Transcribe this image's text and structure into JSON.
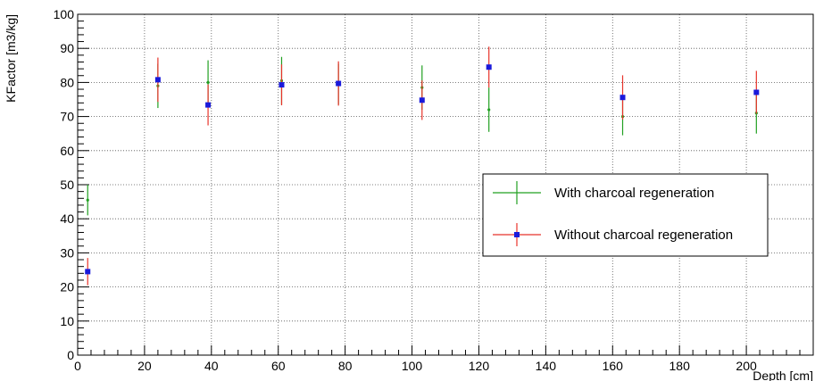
{
  "chart_data": {
    "type": "scatter",
    "title": "",
    "xlabel": "Depth [cm]",
    "ylabel": "KFactor [m3/kg]",
    "xlim": [
      0,
      220
    ],
    "ylim": [
      0,
      100
    ],
    "x_major_ticks": [
      0,
      20,
      40,
      60,
      80,
      100,
      120,
      140,
      160,
      180,
      200
    ],
    "y_major_ticks": [
      0,
      10,
      20,
      30,
      40,
      50,
      60,
      70,
      80,
      90,
      100
    ],
    "grid": true,
    "legend_position": "right",
    "series": [
      {
        "name": "With charcoal regeneration",
        "color": "#22a022",
        "marker": "cross",
        "points": [
          {
            "x": 3,
            "y": 45.5,
            "err": 4.5
          },
          {
            "x": 24,
            "y": 79,
            "err": 6.5
          },
          {
            "x": 39,
            "y": 80,
            "err": 6.5
          },
          {
            "x": 61,
            "y": 80.5,
            "err": 7
          },
          {
            "x": 78,
            "y": 79.5,
            "err": 6
          },
          {
            "x": 103,
            "y": 78.5,
            "err": 6.5
          },
          {
            "x": 123,
            "y": 72,
            "err": 6.5
          },
          {
            "x": 163,
            "y": 70,
            "err": 5.5
          },
          {
            "x": 203,
            "y": 71,
            "err": 6
          }
        ]
      },
      {
        "name": "Without charcoal regeneration",
        "color": "#e8332a",
        "marker_color": "#1a1adb",
        "marker": "square",
        "points": [
          {
            "x": 3,
            "y": 24.5,
            "err": 4
          },
          {
            "x": 24,
            "y": 80.8,
            "err": 6.5
          },
          {
            "x": 39,
            "y": 73.4,
            "err": 6
          },
          {
            "x": 61,
            "y": 79.3,
            "err": 6
          },
          {
            "x": 78,
            "y": 79.7,
            "err": 6.5
          },
          {
            "x": 103,
            "y": 74.8,
            "err": 5.8
          },
          {
            "x": 123,
            "y": 84.5,
            "err": 6
          },
          {
            "x": 163,
            "y": 75.6,
            "err": 6.5
          },
          {
            "x": 203,
            "y": 77.1,
            "err": 6.3
          }
        ]
      }
    ]
  }
}
